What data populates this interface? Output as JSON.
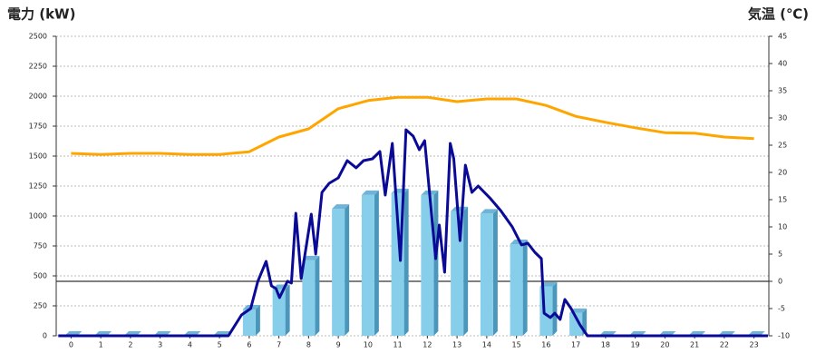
{
  "chart_data": {
    "type": "combo",
    "title_left": "電力 (kW)",
    "title_right": "気温 (℃)",
    "title_left_color": "#1f6fb5",
    "title_right_color": "#f08a24",
    "x": [
      0,
      1,
      2,
      3,
      4,
      5,
      6,
      7,
      8,
      9,
      10,
      11,
      12,
      13,
      14,
      15,
      16,
      17,
      18,
      19,
      20,
      21,
      22,
      23
    ],
    "xlim": [
      -0.5,
      23.5
    ],
    "xticks": [
      0,
      1,
      2,
      3,
      4,
      5,
      6,
      7,
      8,
      9,
      10,
      11,
      12,
      13,
      14,
      15,
      16,
      17,
      18,
      19,
      20,
      21,
      22,
      23
    ],
    "ylim": [
      0,
      2500
    ],
    "yticks": [
      0,
      250,
      500,
      750,
      1000,
      1250,
      1500,
      1750,
      2000,
      2250,
      2500
    ],
    "y2lim": [
      -10,
      45
    ],
    "y2ticks": [
      -10,
      -5,
      0,
      5,
      10,
      15,
      20,
      25,
      30,
      35,
      40,
      45
    ],
    "grid": true,
    "series": [
      {
        "type": "bar",
        "color": "#87ceeb",
        "values": [
          0,
          0,
          0,
          0,
          0,
          0,
          220,
          390,
          630,
          1060,
          1175,
          1190,
          1175,
          1040,
          1020,
          765,
          410,
          190,
          0,
          0,
          0,
          0,
          0,
          0
        ]
      },
      {
        "type": "line",
        "color": "#0a0a96",
        "x": [
          -0.43,
          5.3,
          5.74,
          6.05,
          6.29,
          6.57,
          6.75,
          6.9,
          7.02,
          7.29,
          7.42,
          7.57,
          7.75,
          8.09,
          8.24,
          8.45,
          8.69,
          9.0,
          9.3,
          9.6,
          9.85,
          10.15,
          10.4,
          10.58,
          10.82,
          11.09,
          11.28,
          11.52,
          11.73,
          11.91,
          12.28,
          12.4,
          12.58,
          12.77,
          12.89,
          13.1,
          13.28,
          13.5,
          13.71,
          14.1,
          14.47,
          14.86,
          15.17,
          15.38,
          15.62,
          15.84,
          15.93,
          16.14,
          16.29,
          16.47,
          16.63,
          16.84,
          17.14,
          17.39,
          23.47
        ],
        "values": [
          0,
          0,
          174,
          227,
          455,
          621,
          417,
          394,
          318,
          455,
          440,
          1023,
          477,
          1015,
          682,
          1197,
          1273,
          1318,
          1462,
          1402,
          1462,
          1477,
          1538,
          1174,
          1606,
          629,
          1720,
          1667,
          1553,
          1629,
          644,
          924,
          530,
          1606,
          1477,
          795,
          1424,
          1197,
          1250,
          1152,
          1045,
          909,
          758,
          773,
          697,
          644,
          189,
          152,
          189,
          136,
          303,
          227,
          91,
          0,
          0
        ]
      },
      {
        "type": "line",
        "axis": "y2",
        "color": "#ffa500",
        "values": [
          23.5,
          23.3,
          23.5,
          23.5,
          23.3,
          23.3,
          23.8,
          26.5,
          28,
          31.7,
          33.2,
          33.8,
          33.8,
          33,
          33.5,
          33.5,
          32.3,
          30.3,
          29.2,
          28.2,
          27.3,
          27.2,
          26.5,
          26.2
        ]
      }
    ]
  }
}
